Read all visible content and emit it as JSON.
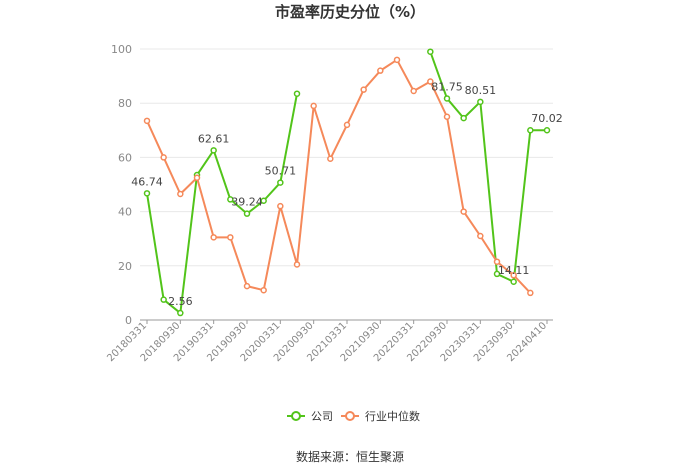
{
  "chart_data": {
    "type": "line",
    "title": "市盈率历史分位（%）",
    "source": "数据来源：恒生聚源",
    "ylim": [
      0,
      100
    ],
    "yticks": [
      0,
      20,
      40,
      60,
      80,
      100
    ],
    "grid": true,
    "legend_position": "bottom",
    "x_tick_labels": [
      "20180331",
      "20180930",
      "20190331",
      "20190930",
      "20200331",
      "20200930",
      "20210331",
      "20210930",
      "20220331",
      "20220930",
      "20230331",
      "20230930",
      "20240410"
    ],
    "x": [
      "20180331",
      "20180630",
      "20180930",
      "20181231",
      "20190331",
      "20190630",
      "20190930",
      "20191231",
      "20200331",
      "20200630",
      "20200930",
      "20201231",
      "20210331",
      "20210630",
      "20210930",
      "20211231",
      "20220331",
      "20220630",
      "20220930",
      "20221231",
      "20230331",
      "20230630",
      "20230930",
      "20231231",
      "20240410"
    ],
    "series": [
      {
        "name": "公司",
        "color": "#52c41a",
        "values": [
          46.74,
          7.5,
          2.56,
          53.5,
          62.61,
          44.5,
          39.24,
          44.0,
          50.71,
          83.5,
          null,
          null,
          null,
          null,
          null,
          null,
          null,
          99.0,
          81.75,
          74.5,
          80.51,
          17.0,
          14.11,
          70.02,
          70.02
        ],
        "labels": [
          {
            "index": 0,
            "text": "46.74"
          },
          {
            "index": 2,
            "text": "2.56"
          },
          {
            "index": 4,
            "text": "62.61"
          },
          {
            "index": 6,
            "text": "39.24"
          },
          {
            "index": 8,
            "text": "50.71"
          },
          {
            "index": 18,
            "text": "81.75"
          },
          {
            "index": 20,
            "text": "80.51"
          },
          {
            "index": 22,
            "text": "14.11"
          },
          {
            "index": 24,
            "text": "70.02"
          }
        ]
      },
      {
        "name": "行业中位数",
        "color": "#f5895a",
        "values": [
          73.5,
          60.0,
          46.5,
          52.5,
          30.5,
          30.5,
          12.5,
          11.0,
          42.0,
          20.5,
          79.0,
          59.5,
          72.0,
          85.0,
          92.0,
          96.0,
          84.5,
          88.0,
          75.0,
          40.0,
          31.0,
          21.5,
          16.5,
          10.0,
          null
        ]
      }
    ]
  }
}
